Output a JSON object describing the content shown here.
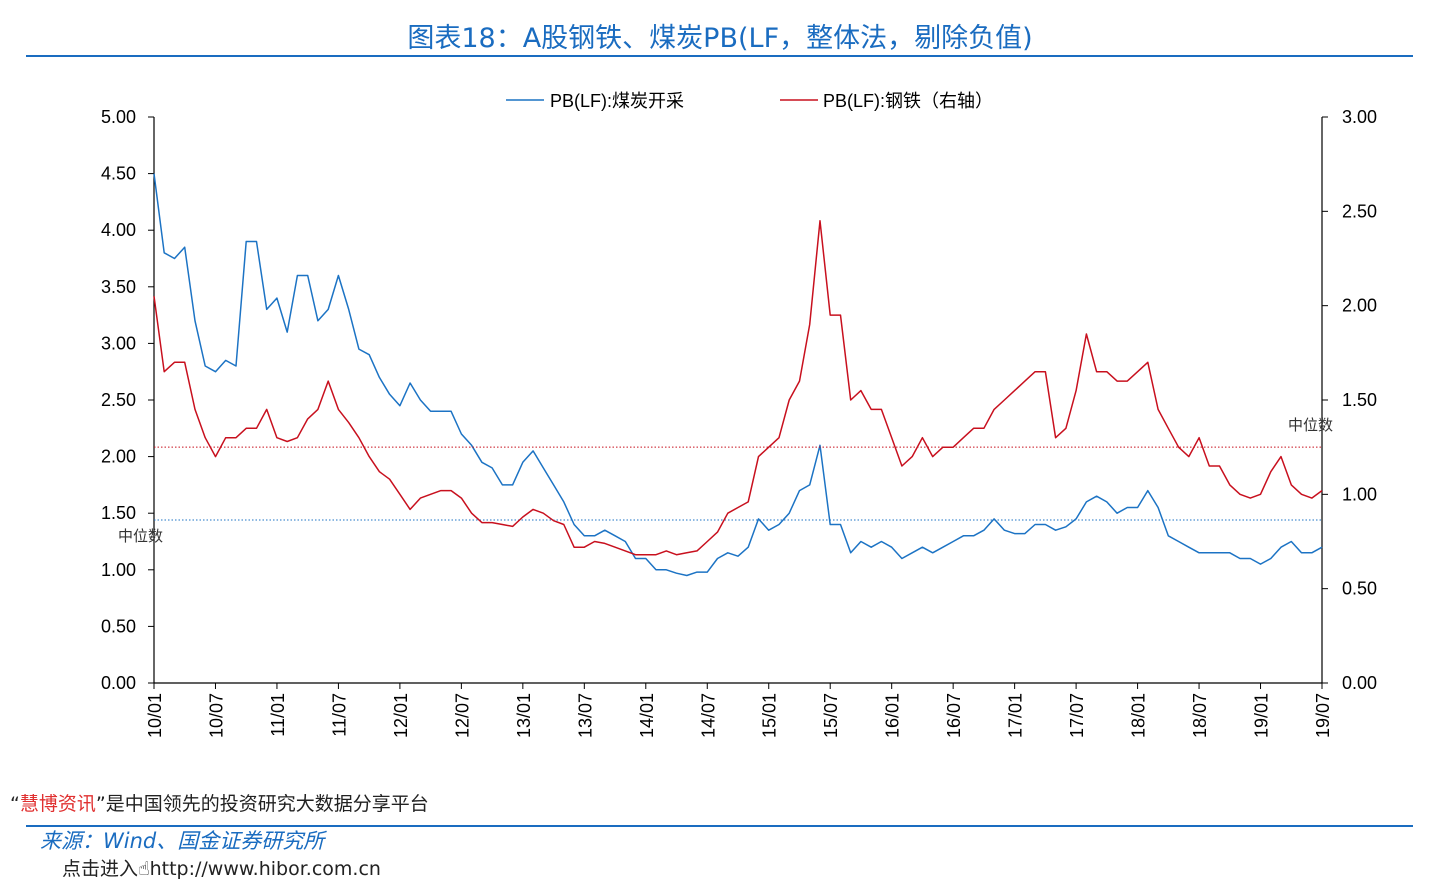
{
  "chart_data": {
    "type": "line",
    "title": "图表18：A股钢铁、煤炭PB(LF，整体法，剔除负值)",
    "x_tick_labels": [
      "10/01",
      "10/07",
      "11/01",
      "11/07",
      "12/01",
      "12/07",
      "13/01",
      "13/07",
      "14/01",
      "14/07",
      "15/01",
      "15/07",
      "16/01",
      "16/07",
      "17/01",
      "17/07",
      "18/01",
      "18/07",
      "19/01",
      "19/07"
    ],
    "x_range": [
      "2010-01",
      "2019-07"
    ],
    "y_left": {
      "range": [
        0,
        5
      ],
      "ticks": [
        "0.00",
        "0.50",
        "1.00",
        "1.50",
        "2.00",
        "2.50",
        "3.00",
        "3.50",
        "4.00",
        "4.50",
        "5.00"
      ]
    },
    "y_right": {
      "range": [
        0,
        3
      ],
      "ticks": [
        "0.00",
        "0.50",
        "1.00",
        "1.50",
        "2.00",
        "2.50",
        "3.00"
      ]
    },
    "legend_position": "top",
    "grid": false,
    "x": [
      "2010-01",
      "2010-02",
      "2010-03",
      "2010-04",
      "2010-05",
      "2010-06",
      "2010-07",
      "2010-08",
      "2010-09",
      "2010-10",
      "2010-11",
      "2010-12",
      "2011-01",
      "2011-02",
      "2011-03",
      "2011-04",
      "2011-05",
      "2011-06",
      "2011-07",
      "2011-08",
      "2011-09",
      "2011-10",
      "2011-11",
      "2011-12",
      "2012-01",
      "2012-02",
      "2012-03",
      "2012-04",
      "2012-05",
      "2012-06",
      "2012-07",
      "2012-08",
      "2012-09",
      "2012-10",
      "2012-11",
      "2012-12",
      "2013-01",
      "2013-02",
      "2013-03",
      "2013-04",
      "2013-05",
      "2013-06",
      "2013-07",
      "2013-08",
      "2013-09",
      "2013-10",
      "2013-11",
      "2013-12",
      "2014-01",
      "2014-02",
      "2014-03",
      "2014-04",
      "2014-05",
      "2014-06",
      "2014-07",
      "2014-08",
      "2014-09",
      "2014-10",
      "2014-11",
      "2014-12",
      "2015-01",
      "2015-02",
      "2015-03",
      "2015-04",
      "2015-05",
      "2015-06",
      "2015-07",
      "2015-08",
      "2015-09",
      "2015-10",
      "2015-11",
      "2015-12",
      "2016-01",
      "2016-02",
      "2016-03",
      "2016-04",
      "2016-05",
      "2016-06",
      "2016-07",
      "2016-08",
      "2016-09",
      "2016-10",
      "2016-11",
      "2016-12",
      "2017-01",
      "2017-02",
      "2017-03",
      "2017-04",
      "2017-05",
      "2017-06",
      "2017-07",
      "2017-08",
      "2017-09",
      "2017-10",
      "2017-11",
      "2017-12",
      "2018-01",
      "2018-02",
      "2018-03",
      "2018-04",
      "2018-05",
      "2018-06",
      "2018-07",
      "2018-08",
      "2018-09",
      "2018-10",
      "2018-11",
      "2018-12",
      "2019-01",
      "2019-02",
      "2019-03",
      "2019-04",
      "2019-05",
      "2019-06",
      "2019-07"
    ],
    "series": [
      {
        "name": "PB(LF):煤炭开采",
        "axis": "left",
        "color": "#1c73c4",
        "median": 1.44,
        "median_label": "中位数",
        "values": [
          4.5,
          3.8,
          3.75,
          3.85,
          3.2,
          2.8,
          2.75,
          2.85,
          2.8,
          3.9,
          3.9,
          3.3,
          3.4,
          3.1,
          3.6,
          3.6,
          3.2,
          3.3,
          3.6,
          3.3,
          2.95,
          2.9,
          2.7,
          2.55,
          2.45,
          2.65,
          2.5,
          2.4,
          2.4,
          2.4,
          2.2,
          2.1,
          1.95,
          1.9,
          1.75,
          1.75,
          1.95,
          2.05,
          1.9,
          1.75,
          1.6,
          1.4,
          1.3,
          1.3,
          1.35,
          1.3,
          1.25,
          1.1,
          1.1,
          1.0,
          1.0,
          0.97,
          0.95,
          0.98,
          0.98,
          1.1,
          1.15,
          1.12,
          1.2,
          1.45,
          1.35,
          1.4,
          1.5,
          1.7,
          1.75,
          2.1,
          1.4,
          1.4,
          1.15,
          1.25,
          1.2,
          1.25,
          1.2,
          1.1,
          1.15,
          1.2,
          1.15,
          1.2,
          1.25,
          1.3,
          1.3,
          1.35,
          1.45,
          1.35,
          1.32,
          1.32,
          1.4,
          1.4,
          1.35,
          1.38,
          1.45,
          1.6,
          1.65,
          1.6,
          1.5,
          1.55,
          1.55,
          1.7,
          1.55,
          1.3,
          1.25,
          1.2,
          1.15,
          1.15,
          1.15,
          1.15,
          1.1,
          1.1,
          1.05,
          1.1,
          1.2,
          1.25,
          1.15,
          1.15,
          1.2
        ]
      },
      {
        "name": "PB(LF):钢铁（右轴）",
        "axis": "right",
        "color": "#c8101e",
        "median": 1.25,
        "median_label": "中位数",
        "values": [
          2.05,
          1.65,
          1.7,
          1.7,
          1.45,
          1.3,
          1.2,
          1.3,
          1.3,
          1.35,
          1.35,
          1.45,
          1.3,
          1.28,
          1.3,
          1.4,
          1.45,
          1.6,
          1.45,
          1.38,
          1.3,
          1.2,
          1.12,
          1.08,
          1.0,
          0.92,
          0.98,
          1.0,
          1.02,
          1.02,
          0.98,
          0.9,
          0.85,
          0.85,
          0.84,
          0.83,
          0.88,
          0.92,
          0.9,
          0.86,
          0.84,
          0.72,
          0.72,
          0.75,
          0.74,
          0.72,
          0.7,
          0.68,
          0.68,
          0.68,
          0.7,
          0.68,
          0.69,
          0.7,
          0.75,
          0.8,
          0.9,
          0.93,
          0.96,
          1.2,
          1.25,
          1.3,
          1.5,
          1.6,
          1.9,
          2.45,
          1.95,
          1.95,
          1.5,
          1.55,
          1.45,
          1.45,
          1.3,
          1.15,
          1.2,
          1.3,
          1.2,
          1.25,
          1.25,
          1.3,
          1.35,
          1.35,
          1.45,
          1.5,
          1.55,
          1.6,
          1.65,
          1.65,
          1.3,
          1.35,
          1.55,
          1.85,
          1.65,
          1.65,
          1.6,
          1.6,
          1.65,
          1.7,
          1.45,
          1.35,
          1.25,
          1.2,
          1.3,
          1.15,
          1.15,
          1.05,
          1.0,
          0.98,
          1.0,
          1.12,
          1.2,
          1.05,
          1.0,
          0.98,
          1.02
        ]
      }
    ]
  },
  "footer": {
    "quote_open": "“",
    "brand": "慧博资讯",
    "quote_close": "”",
    "slogan": "是中国领先的投资研究大数据分享平台",
    "source": "来源：Wind、国金证券研究所",
    "link_prefix": "点击进入",
    "link": "http://www.hibor.com.cn"
  }
}
